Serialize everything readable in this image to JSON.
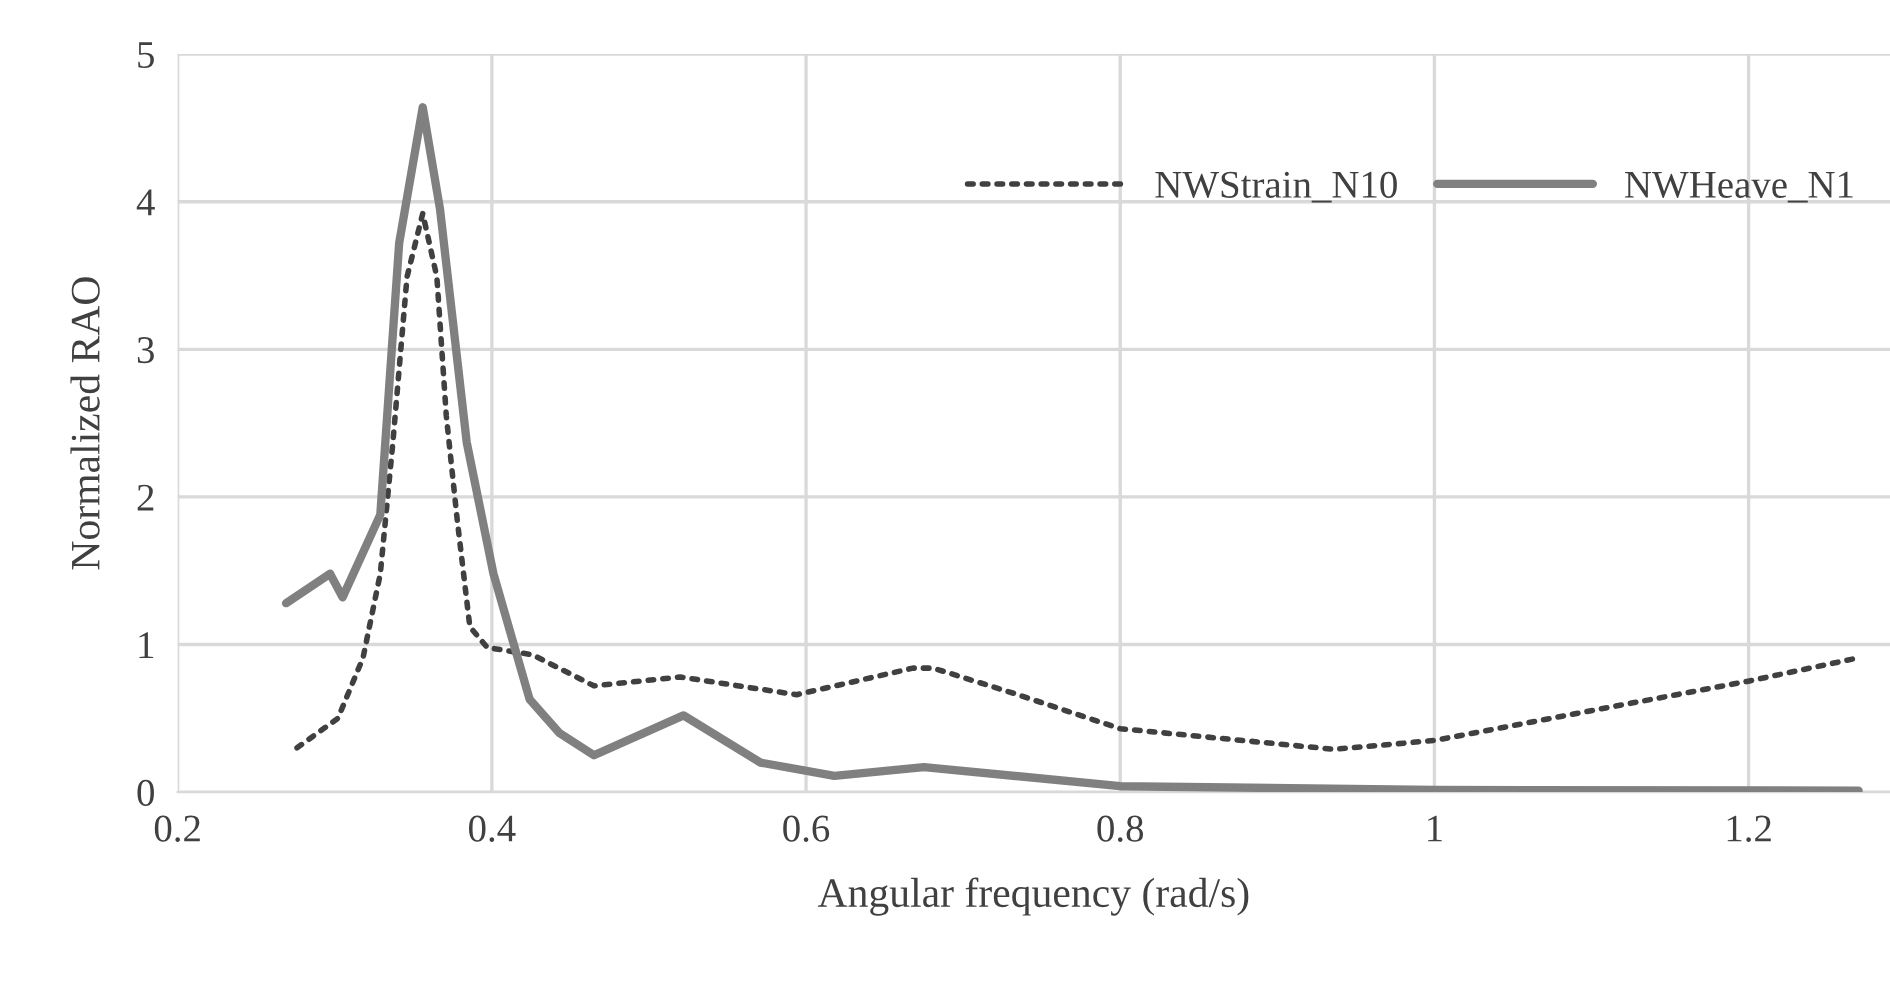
{
  "chart_data": {
    "type": "line",
    "xlabel": "Angular frequency (rad/s)",
    "ylabel": "Normalized RAO",
    "xlim": [
      0.2,
      1.29
    ],
    "xticks": [
      0.2,
      0.4,
      0.6,
      0.8,
      1,
      1.2
    ],
    "ylim": [
      0,
      5
    ],
    "yticks": [
      0,
      1,
      2,
      3,
      4,
      5
    ],
    "grid": true,
    "legend": "top right",
    "marker": "none",
    "series": [
      {
        "name": "NWStrain_N10",
        "color": "#404040",
        "line_style": "dotted",
        "x": [
          0.276,
          0.302,
          0.318,
          0.329,
          0.337,
          0.346,
          0.356,
          0.365,
          0.371,
          0.378,
          0.386,
          0.397,
          0.426,
          0.465,
          0.52,
          0.594,
          0.668,
          0.681,
          0.732,
          0.8,
          0.936,
          1.0,
          1.114,
          1.199,
          1.27
        ],
        "values": [
          0.3,
          0.5,
          0.91,
          1.48,
          2.37,
          3.49,
          3.92,
          3.49,
          2.55,
          1.84,
          1.12,
          0.98,
          0.93,
          0.72,
          0.78,
          0.66,
          0.84,
          0.84,
          0.67,
          0.43,
          0.29,
          0.35,
          0.58,
          0.75,
          0.91
        ]
      },
      {
        "name": "NWHeave_N1",
        "color": "#808080",
        "line_style": "solid",
        "x": [
          0.269,
          0.297,
          0.305,
          0.329,
          0.341,
          0.356,
          0.367,
          0.384,
          0.401,
          0.424,
          0.443,
          0.465,
          0.522,
          0.571,
          0.618,
          0.675,
          0.8,
          1.0,
          1.27
        ],
        "values": [
          1.28,
          1.48,
          1.32,
          1.88,
          3.72,
          4.64,
          3.95,
          2.37,
          1.48,
          0.63,
          0.4,
          0.25,
          0.52,
          0.2,
          0.11,
          0.17,
          0.04,
          0.015,
          0.01
        ]
      }
    ]
  }
}
